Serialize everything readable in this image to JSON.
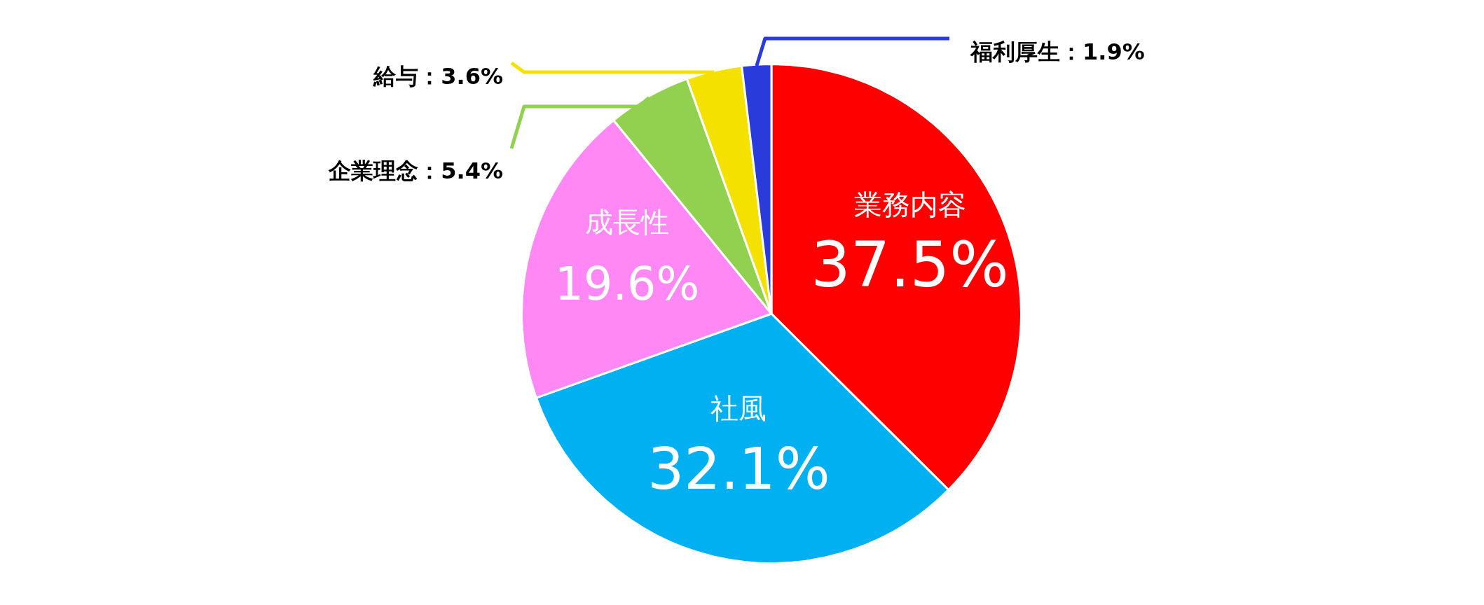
{
  "chart_data": {
    "type": "pie",
    "categories": [
      "業務内容",
      "社風",
      "成長性",
      "企業理念",
      "給与",
      "福利厚生"
    ],
    "values": [
      37.5,
      32.1,
      19.6,
      5.4,
      3.6,
      1.9
    ],
    "colors": [
      "#ff0000",
      "#00b0f0",
      "#ff88f4",
      "#92d050",
      "#f5e100",
      "#2a3bdb"
    ],
    "value_labels": [
      "37.5%",
      "32.1%",
      "19.6%",
      "5.4%",
      "3.6%",
      "1.9%"
    ],
    "legend": false
  }
}
